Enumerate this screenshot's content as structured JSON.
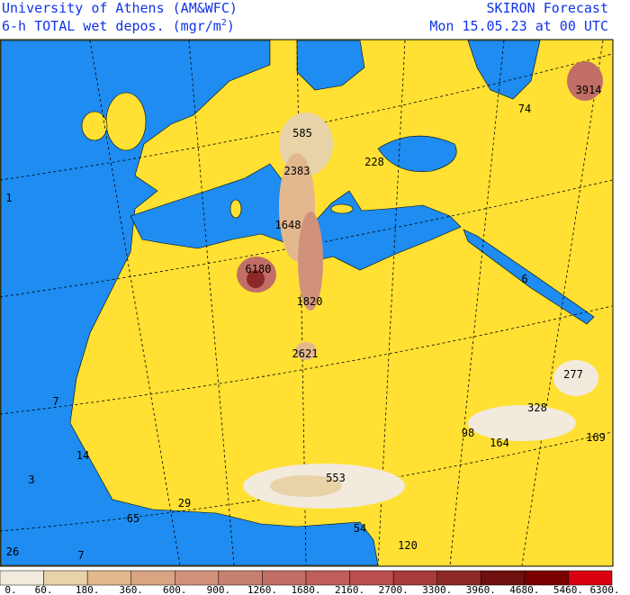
{
  "header": {
    "title": "University of Athens (AM&WFC)",
    "subtitle": "6-h TOTAL wet depos. (mgr/m",
    "subtitle_sup": "2",
    "subtitle_end": ")",
    "product": "SKIRON Forecast",
    "valid_time": "Mon 15.05.23 at 00 UTC"
  },
  "map": {
    "labels": [
      "3914",
      "74",
      "585",
      "228",
      "2383",
      "1648",
      "6180",
      "1820",
      "2621",
      "6",
      "277",
      "328",
      "98",
      "164",
      "169",
      "553",
      "29",
      "65",
      "54",
      "120",
      "26",
      "7",
      "14",
      "7",
      "1",
      "3"
    ]
  },
  "colorbar": {
    "colors": [
      "#f2eadc",
      "#e8d2a8",
      "#e2b88c",
      "#d8a482",
      "#d0927a",
      "#c78070",
      "#c06e66",
      "#c05e5c",
      "#bc4e4e",
      "#a83a3a",
      "#8c2828",
      "#701010",
      "#7a0000",
      "#d80010"
    ],
    "labels": [
      "0.",
      "60.",
      "180.",
      "360.",
      "600.",
      "900.",
      "1260.",
      "1680.",
      "2160.",
      "2700.",
      "3300.",
      "3960.",
      "4680.",
      "5460.",
      "6300."
    ]
  }
}
